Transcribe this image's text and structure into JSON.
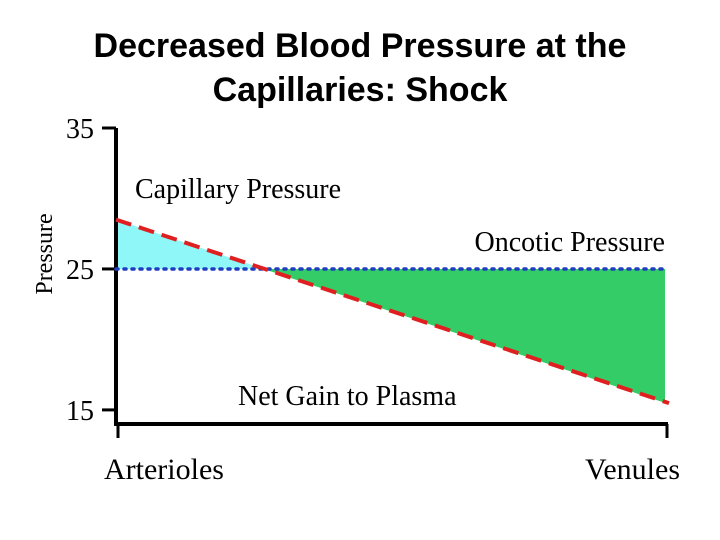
{
  "slide": {
    "title_line1": "Decreased Blood Pressure at the",
    "title_line2": "Capillaries:  Shock"
  },
  "chart_data": {
    "type": "line",
    "title": "",
    "xlabel": "",
    "ylabel": "Pressure",
    "x": [
      0,
      1
    ],
    "x_tick_labels": [
      "Arterioles",
      "Venules"
    ],
    "y_ticks": [
      15,
      25,
      35
    ],
    "ylim": [
      14,
      35
    ],
    "grid": false,
    "series": [
      {
        "name": "Capillary Pressure",
        "values": [
          28.5,
          15.5
        ],
        "color": "#e02020",
        "style": "dashed"
      },
      {
        "name": "Oncotic Pressure",
        "values": [
          25,
          25
        ],
        "color": "#1f3fbf",
        "style": "dotted"
      }
    ],
    "annotations": [
      {
        "text": "Capillary Pressure"
      },
      {
        "text": "Oncotic Pressure"
      },
      {
        "text": "Net Gain to Plasma"
      }
    ],
    "fill_colors": {
      "filtration": "#8ff7f7",
      "reabsorption": "#33cc66"
    }
  }
}
